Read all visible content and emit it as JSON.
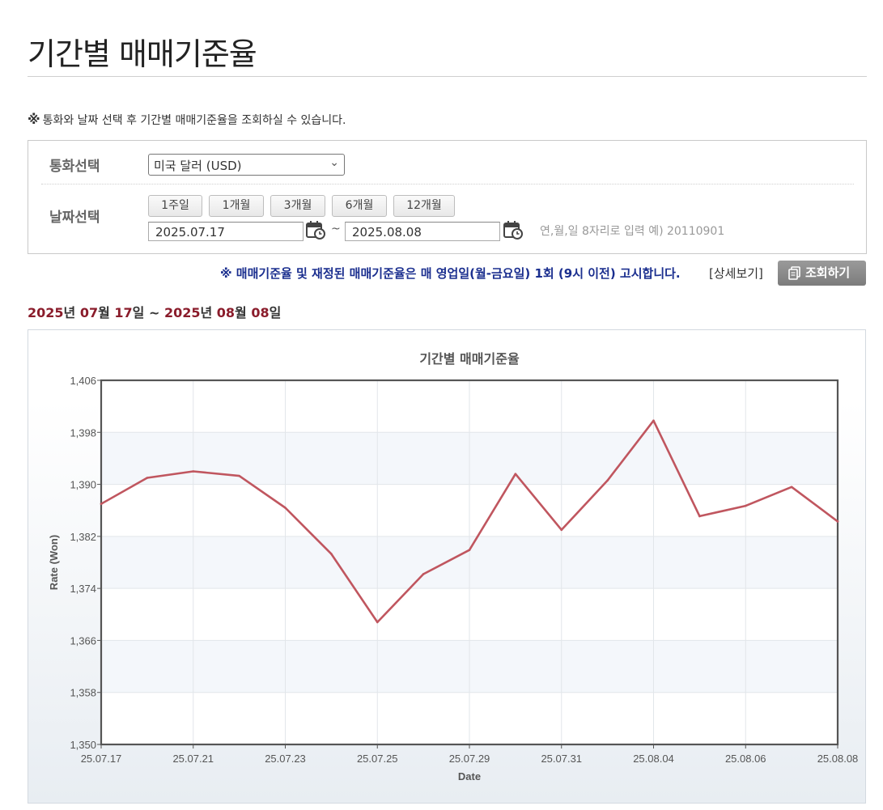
{
  "page": {
    "title": "기간별 매매기준율",
    "notice_mark": "※",
    "notice": "통화와 날짜 선택 후 기간별 매매기준율을 조회하실 수 있습니다."
  },
  "search": {
    "currency_label": "통화선택",
    "currency_selected": "미국 달러 (USD)",
    "date_label": "날짜선택",
    "period_buttons": [
      "1주일",
      "1개월",
      "3개월",
      "6개월",
      "12개월"
    ],
    "start_date": "2025.07.17",
    "end_date": "2025.08.08",
    "tilde": "~",
    "date_hint": "연,월,일 8자리로 입력 예) 20110901"
  },
  "policy_notice": "※ 매매기준율 및 재정된 매매기준율은 매 영업일(월-금요일) 1회 (9시 이전) 고시합니다.",
  "detail_link": "[상세보기]",
  "query_button": "조회하기",
  "range": {
    "y1": "2025",
    "u1": "년 ",
    "m1": "07",
    "u2": "월 ",
    "d1": "17",
    "u3": "일 ~ ",
    "y2": "2025",
    "u4": "년 ",
    "m2": "08",
    "u5": "월 ",
    "d2": "08",
    "u6": "일"
  },
  "colors": {
    "line": "#c0565f",
    "button_gray": "#8a8a8a",
    "policy_text": "#1b2f8f",
    "range_number": "#8a1c2b"
  },
  "chart_data": {
    "type": "line",
    "title": "기간별 매매기준율",
    "xlabel": "Date",
    "ylabel": "Rate (Won)",
    "ylim": [
      1350,
      1406
    ],
    "yticks": [
      1350,
      1358,
      1366,
      1374,
      1382,
      1390,
      1398,
      1406
    ],
    "ytick_labels": [
      "1,350",
      "1,358",
      "1,366",
      "1,374",
      "1,382",
      "1,390",
      "1,398",
      "1,406"
    ],
    "x": [
      "25.07.17",
      "25.07.18",
      "25.07.21",
      "25.07.22",
      "25.07.23",
      "25.07.24",
      "25.07.25",
      "25.07.28",
      "25.07.29",
      "25.07.30",
      "25.07.31",
      "25.08.01",
      "25.08.04",
      "25.08.05",
      "25.08.06",
      "25.08.07",
      "25.08.08"
    ],
    "xtick_labels": [
      "25.07.17",
      "25.07.21",
      "25.07.23",
      "25.07.25",
      "25.07.29",
      "25.07.31",
      "25.08.04",
      "25.08.06",
      "25.08.08"
    ],
    "xtick_index": [
      0,
      2,
      4,
      6,
      8,
      10,
      12,
      14,
      16
    ],
    "series": [
      {
        "values": [
          1387.0,
          1391.0,
          1392.0,
          1391.3,
          1386.4,
          1379.3,
          1368.8,
          1376.2,
          1379.9,
          1391.6,
          1383.0,
          1390.6,
          1399.8,
          1385.1,
          1386.7,
          1389.6,
          1384.3
        ]
      }
    ],
    "grid": true,
    "legend": "none"
  }
}
